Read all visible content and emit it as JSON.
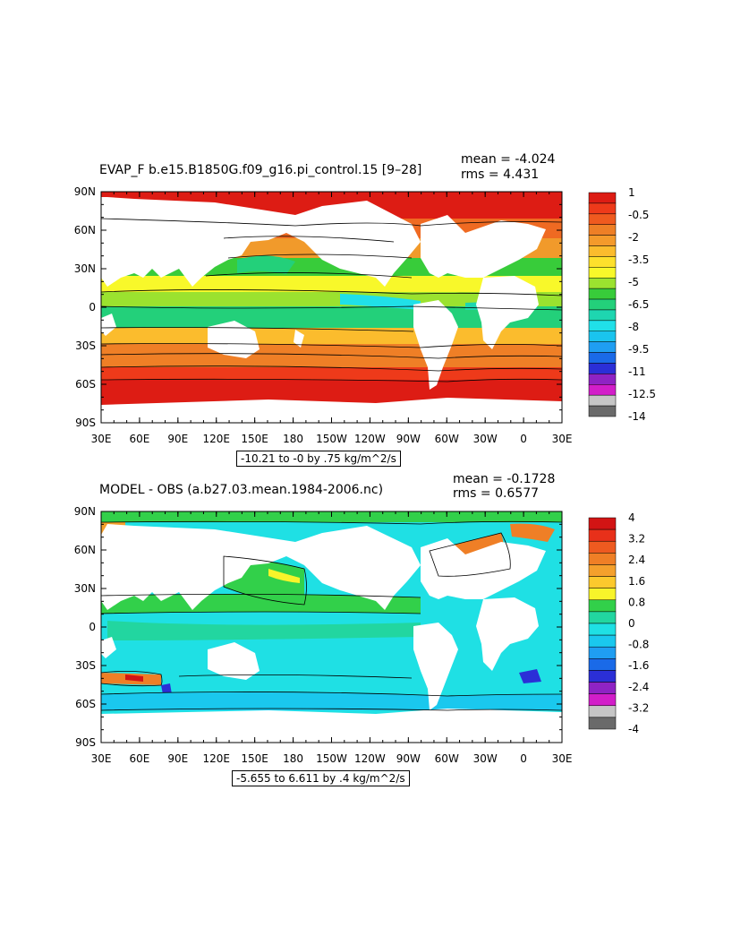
{
  "panels": [
    {
      "title": "EVAP_F b.e15.B1850G.f09_g16.pi_control.15 [9–28]",
      "mean_label": "mean = -4.024",
      "rms_label": "rms = 4.431",
      "range_label": "-10.21 to -0 by .75 kg/m^2/s",
      "lat_labels": [
        "90N",
        "60N",
        "30N",
        "0",
        "30S",
        "60S",
        "90S"
      ],
      "lon_labels": [
        "30E",
        "60E",
        "90E",
        "120E",
        "150E",
        "180",
        "150W",
        "120W",
        "90W",
        "60W",
        "30W",
        "0",
        "30E"
      ],
      "colorbar": {
        "labels": [
          "1",
          "-0.5",
          "-2",
          "-3.5",
          "-5",
          "-6.5",
          "-8",
          "-9.5",
          "-11",
          "-12.5",
          "-14"
        ],
        "colors": [
          "#dd1c14",
          "#ee3a1a",
          "#ef5a1f",
          "#ee7f26",
          "#f49a2b",
          "#fbbc2d",
          "#fde02c",
          "#f8f82a",
          "#9be22f",
          "#38cc3a",
          "#23d07a",
          "#1ed6b0",
          "#20e0e8",
          "#1ac4ee",
          "#1f9ef2",
          "#1a6ae8",
          "#2b2fd7",
          "#8f23c4",
          "#d21ec9",
          "#c6c6c6",
          "#6a6a6a"
        ]
      }
    },
    {
      "title": "MODEL - OBS (a.b27.03.mean.1984-2006.nc)",
      "mean_label": "mean = -0.1728",
      "rms_label": "rms = 0.6577",
      "range_label": "-5.655 to 6.611 by .4 kg/m^2/s",
      "lat_labels": [
        "90N",
        "60N",
        "30N",
        "0",
        "30S",
        "60S",
        "90S"
      ],
      "lon_labels": [
        "30E",
        "60E",
        "90E",
        "120E",
        "150E",
        "180",
        "150W",
        "120W",
        "90W",
        "60W",
        "30W",
        "0",
        "30E"
      ],
      "colorbar": {
        "labels": [
          "4",
          "3.2",
          "2.4",
          "1.6",
          "0.8",
          "0",
          "-0.8",
          "-1.6",
          "-2.4",
          "-3.2",
          "-4"
        ],
        "colors": [
          "#d21414",
          "#e8301a",
          "#ee5a20",
          "#ef7f26",
          "#f4a02c",
          "#fcc92d",
          "#f8f42a",
          "#32d04a",
          "#22d6a0",
          "#1fe0e4",
          "#1ac8ee",
          "#1f9ef2",
          "#1a6ae8",
          "#2b2fd7",
          "#8f23c4",
          "#d21ec9",
          "#c6c6c6",
          "#6a6a6a"
        ]
      }
    }
  ]
}
